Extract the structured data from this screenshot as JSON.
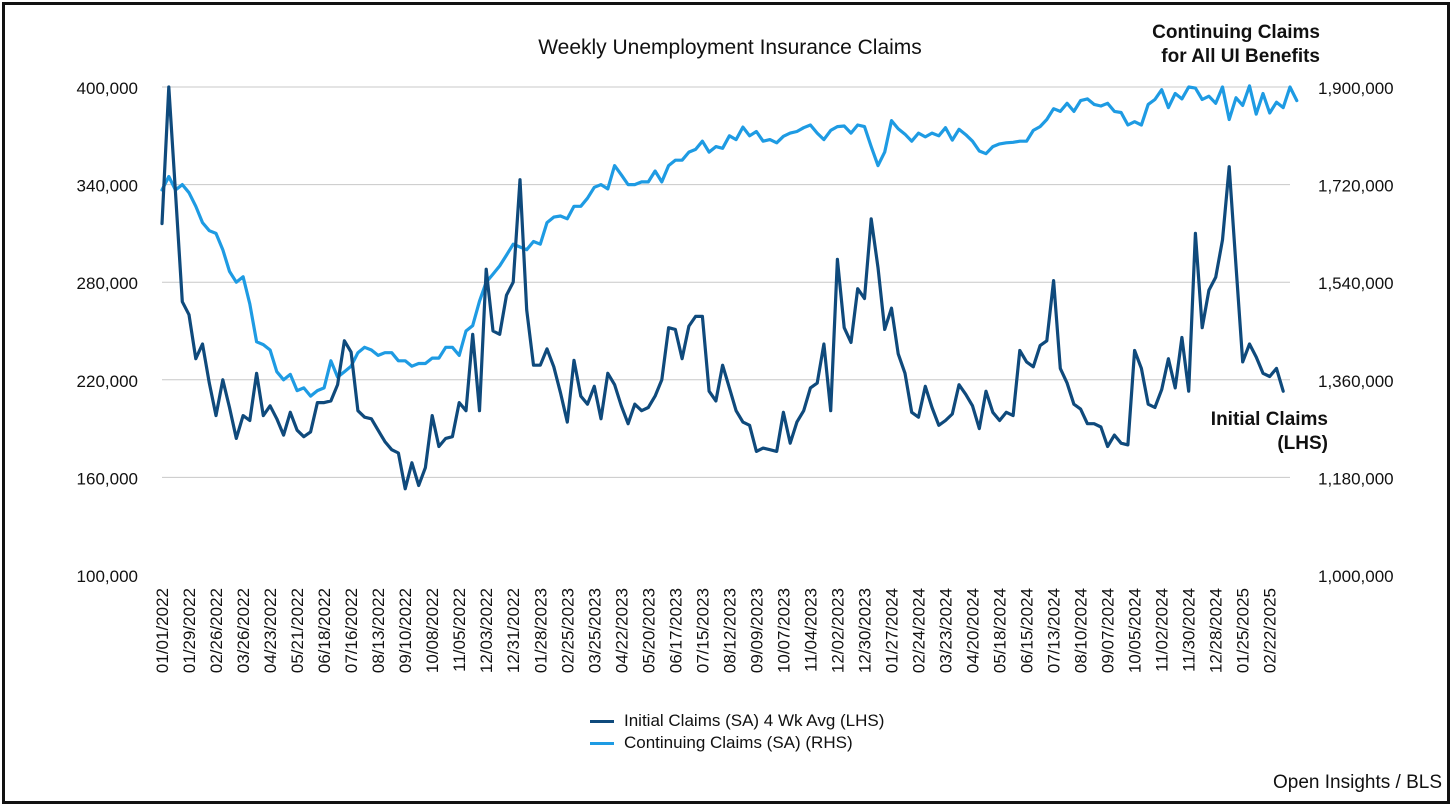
{
  "chart_data": {
    "type": "line",
    "title": "Weekly Unemployment Insurance Claims",
    "annotations": {
      "continuing": "Continuing Claims\nfor All UI Benefits",
      "initial": "Initial Claims\n(LHS)"
    },
    "source": "Open Insights / BLS",
    "y_left": {
      "ylim": [
        100000,
        400000
      ],
      "ticks": [
        "100,000",
        "160,000",
        "220,000",
        "280,000",
        "340,000",
        "400,000"
      ]
    },
    "y_right": {
      "ylim": [
        1000000,
        1900000
      ],
      "ticks": [
        "1,000,000",
        "1,180,000",
        "1,360,000",
        "1,540,000",
        "1,720,000",
        "1,900,000"
      ]
    },
    "x_ticks": [
      "01/01/2022",
      "01/29/2022",
      "02/26/2022",
      "03/26/2022",
      "04/23/2022",
      "05/21/2022",
      "06/18/2022",
      "07/16/2022",
      "08/13/2022",
      "09/10/2022",
      "10/08/2022",
      "11/05/2022",
      "12/03/2022",
      "12/31/2022",
      "01/28/2023",
      "02/25/2023",
      "03/25/2023",
      "04/22/2023",
      "05/20/2023",
      "06/17/2023",
      "07/15/2023",
      "08/12/2023",
      "09/09/2023",
      "10/07/2023",
      "11/04/2023",
      "12/02/2023",
      "12/30/2023",
      "01/27/2024",
      "02/24/2024",
      "03/23/2024",
      "04/20/2024",
      "05/18/2024",
      "06/15/2024",
      "07/13/2024",
      "08/10/2024",
      "09/07/2024",
      "10/05/2024",
      "11/02/2024",
      "11/30/2024",
      "12/28/2024",
      "01/25/2025",
      "02/22/2025"
    ],
    "x_start": "01/01/2022",
    "x_interval_days": 7,
    "grid": true,
    "legend_position": "bottom",
    "series": [
      {
        "name": "Initial Claims (SA) 4 Wk Avg (LHS)",
        "axis": "left",
        "color": "#0f4a7c",
        "values": [
          316000,
          400000,
          335000,
          268000,
          260000,
          233000,
          242000,
          218000,
          198000,
          220000,
          203000,
          184000,
          198000,
          195000,
          224000,
          198000,
          204000,
          196000,
          186000,
          200000,
          189000,
          185000,
          188000,
          206000,
          206000,
          207000,
          217000,
          244000,
          237000,
          201000,
          197000,
          196000,
          189000,
          182000,
          177000,
          175000,
          153000,
          169000,
          155000,
          166000,
          198000,
          179000,
          184000,
          185000,
          206000,
          201000,
          248000,
          201000,
          288000,
          250000,
          248000,
          272000,
          280000,
          343000,
          263000,
          229000,
          229000,
          239000,
          228000,
          212000,
          194000,
          232000,
          210000,
          205000,
          216000,
          196000,
          224000,
          217000,
          204000,
          193000,
          205000,
          201000,
          203000,
          210000,
          220000,
          252000,
          251000,
          233000,
          253000,
          259000,
          259000,
          213000,
          207000,
          229000,
          215000,
          201000,
          194000,
          192000,
          176000,
          178000,
          177000,
          176000,
          200000,
          181000,
          194000,
          201000,
          215000,
          218000,
          242000,
          201000,
          294000,
          252000,
          243000,
          276000,
          270000,
          319000,
          289000,
          251000,
          264000,
          236000,
          224000,
          200000,
          197000,
          216000,
          203000,
          192000,
          195000,
          199000,
          217000,
          211000,
          204000,
          190000,
          213000,
          200000,
          195000,
          200000,
          198000,
          238000,
          231000,
          228000,
          241000,
          244000,
          281000,
          227000,
          218000,
          205000,
          202000,
          193000,
          193000,
          191000,
          179000,
          186000,
          181000,
          180000,
          238000,
          227000,
          205000,
          203000,
          214000,
          233000,
          215000,
          246000,
          213000,
          310000,
          252000,
          275000,
          283000,
          306000,
          351000,
          290000,
          231000,
          242000,
          234000,
          224000,
          222000,
          227000,
          213000
        ]
      },
      {
        "name": "Continuing Claims (SA) (RHS)",
        "axis": "right",
        "color": "#1e9be3",
        "values": [
          1710000,
          1735000,
          1710000,
          1720000,
          1705000,
          1680000,
          1650000,
          1635000,
          1630000,
          1600000,
          1560000,
          1540000,
          1550000,
          1500000,
          1430000,
          1425000,
          1415000,
          1375000,
          1360000,
          1370000,
          1340000,
          1345000,
          1330000,
          1340000,
          1345000,
          1395000,
          1365000,
          1375000,
          1385000,
          1410000,
          1420000,
          1415000,
          1405000,
          1410000,
          1410000,
          1395000,
          1395000,
          1385000,
          1390000,
          1390000,
          1400000,
          1400000,
          1420000,
          1420000,
          1405000,
          1450000,
          1460000,
          1505000,
          1540000,
          1555000,
          1570000,
          1590000,
          1610000,
          1605000,
          1600000,
          1615000,
          1610000,
          1650000,
          1660000,
          1662000,
          1657000,
          1680000,
          1680000,
          1695000,
          1715000,
          1720000,
          1712000,
          1755000,
          1738000,
          1720000,
          1720000,
          1725000,
          1725000,
          1745000,
          1725000,
          1755000,
          1765000,
          1765000,
          1780000,
          1785000,
          1800000,
          1780000,
          1790000,
          1787000,
          1810000,
          1803000,
          1826000,
          1810000,
          1818000,
          1800000,
          1803000,
          1797000,
          1809000,
          1815000,
          1818000,
          1825000,
          1830000,
          1815000,
          1803000,
          1820000,
          1827000,
          1828000,
          1815000,
          1830000,
          1827000,
          1790000,
          1755000,
          1780000,
          1838000,
          1823000,
          1813000,
          1800000,
          1815000,
          1808000,
          1815000,
          1810000,
          1825000,
          1802000,
          1822000,
          1812000,
          1800000,
          1782000,
          1777000,
          1790000,
          1795000,
          1797000,
          1798000,
          1800000,
          1800000,
          1820000,
          1827000,
          1840000,
          1860000,
          1855000,
          1870000,
          1855000,
          1875000,
          1878000,
          1868000,
          1865000,
          1870000,
          1855000,
          1853000,
          1830000,
          1836000,
          1830000,
          1868000,
          1877000,
          1895000,
          1862000,
          1888000,
          1878000,
          1900000,
          1898000,
          1877000,
          1883000,
          1870000,
          1900000,
          1840000,
          1880000,
          1866000,
          1902000,
          1850000,
          1888000,
          1852000,
          1872000,
          1862000,
          1900000,
          1875000
        ]
      }
    ]
  }
}
